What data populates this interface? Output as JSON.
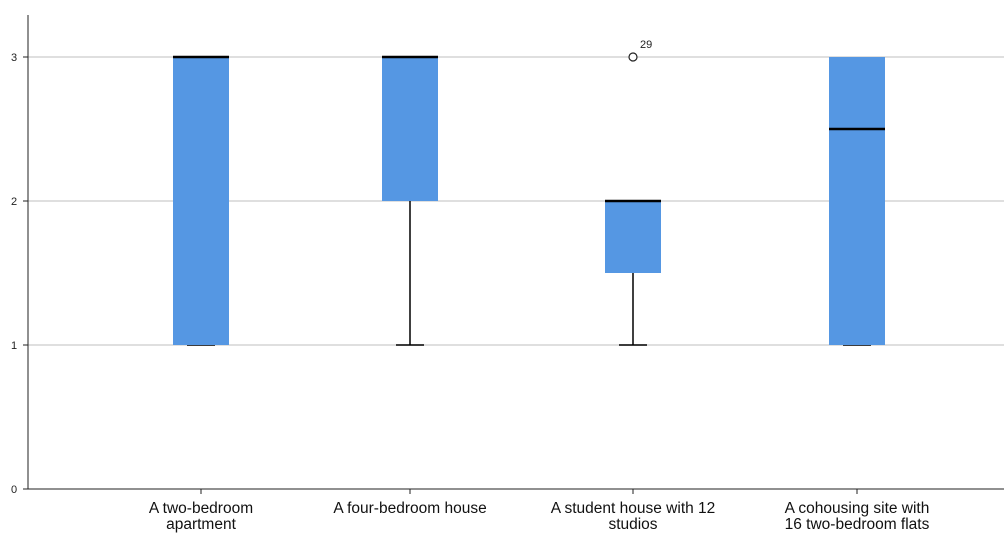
{
  "chart_data": {
    "type": "boxplot",
    "title": "",
    "xlabel": "",
    "ylabel": "",
    "ylim": [
      0,
      3
    ],
    "yticks": [
      "0",
      "1",
      "2",
      "3"
    ],
    "grid": true,
    "colors": {
      "box_fill": "#5597e3",
      "grid": "#cccccc",
      "axis": "#222222",
      "median": "#000000",
      "whisker": "#000000"
    },
    "categories": [
      [
        "A two-bedroom",
        "apartment"
      ],
      [
        "A four-bedroom house"
      ],
      [
        "A student house with 12",
        "studios"
      ],
      [
        "A cohousing site with",
        "16 two-bedroom flats"
      ]
    ],
    "boxes": [
      {
        "whisker_low": 1,
        "q1": 1,
        "median": 3,
        "q3": 3,
        "whisker_high": 3,
        "outliers": []
      },
      {
        "whisker_low": 1,
        "q1": 2,
        "median": 3,
        "q3": 3,
        "whisker_high": 3,
        "outliers": []
      },
      {
        "whisker_low": 1,
        "q1": 1.5,
        "median": 2,
        "q3": 2,
        "whisker_high": 2,
        "outliers": [
          {
            "value": 3,
            "label": "29"
          }
        ]
      },
      {
        "whisker_low": 1,
        "q1": 1,
        "median": 2.5,
        "q3": 3,
        "whisker_high": 3,
        "outliers": []
      }
    ]
  }
}
